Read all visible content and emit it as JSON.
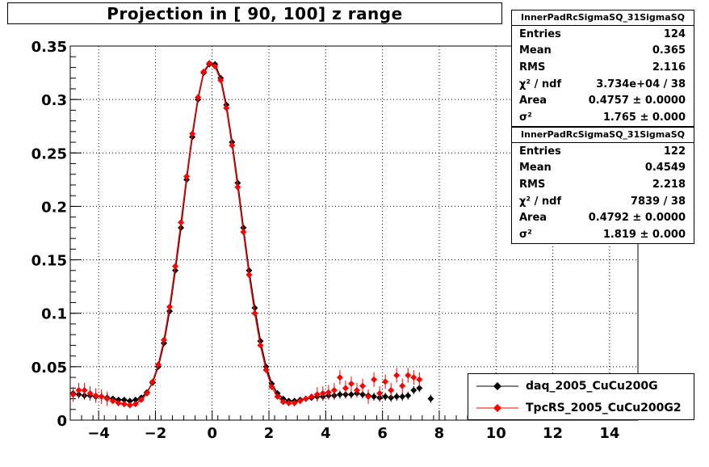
{
  "title": "Projection in [  90, 100] z range",
  "stats_boxes": [
    {
      "name": "InnerPadRcSigmaSQ_31SigmaSQ",
      "rows": [
        {
          "label": "Entries",
          "value": "124"
        },
        {
          "label": "Mean",
          "value": "0.365"
        },
        {
          "label": "RMS",
          "value": "2.116"
        },
        {
          "label": "χ² / ndf",
          "value": "3.734e+04 / 38"
        },
        {
          "label": "Area",
          "value": "0.4757 ± 0.0000"
        },
        {
          "label": "σ²",
          "value": "1.765 ± 0.000"
        }
      ]
    },
    {
      "name": "InnerPadRcSigmaSQ_31SigmaSQ",
      "rows": [
        {
          "label": "Entries",
          "value": "122"
        },
        {
          "label": "Mean",
          "value": "0.4549"
        },
        {
          "label": "RMS",
          "value": "2.218"
        },
        {
          "label": "χ² / ndf",
          "value": "7839 / 38"
        },
        {
          "label": "Area",
          "value": "0.4792 ± 0.0000"
        },
        {
          "label": "σ²",
          "value": "1.819 ± 0.000"
        }
      ]
    }
  ],
  "legend": [
    {
      "label": "daq_2005_CuCu200G",
      "color": "#000000"
    },
    {
      "label": "TpcRS_2005_CuCu200G2",
      "color": "#ff0000"
    }
  ],
  "chart_data": {
    "type": "scatter",
    "xlim": [
      -5,
      15
    ],
    "ylim": [
      0,
      0.35
    ],
    "xticks": [
      -4,
      -2,
      0,
      2,
      4,
      6,
      8,
      10,
      12,
      14
    ],
    "xtick_labels": [
      "−4",
      "−2",
      "0",
      "2",
      "4",
      "6",
      "8",
      "10",
      "12",
      "14"
    ],
    "yticks": [
      0,
      0.05,
      0.1,
      0.15,
      0.2,
      0.25,
      0.3,
      0.35
    ],
    "ytick_labels": [
      "0",
      "0.05",
      "0.1",
      "0.15",
      "0.2",
      "0.25",
      "0.3",
      "0.35"
    ],
    "grid": true,
    "legend_position": "bottom-right",
    "series": [
      {
        "name": "daq_2005_CuCu200G",
        "color": "#000000",
        "x": [
          -4.9,
          -4.7,
          -4.5,
          -4.3,
          -4.1,
          -3.9,
          -3.7,
          -3.5,
          -3.3,
          -3.1,
          -2.9,
          -2.7,
          -2.5,
          -2.3,
          -2.1,
          -1.9,
          -1.7,
          -1.5,
          -1.3,
          -1.1,
          -0.9,
          -0.7,
          -0.5,
          -0.3,
          -0.1,
          0.1,
          0.3,
          0.5,
          0.7,
          0.9,
          1.1,
          1.3,
          1.5,
          1.7,
          1.9,
          2.1,
          2.3,
          2.5,
          2.7,
          2.9,
          3.1,
          3.3,
          3.5,
          3.7,
          3.9,
          4.1,
          4.3,
          4.5,
          4.7,
          4.9,
          5.1,
          5.3,
          5.5,
          5.7,
          5.9,
          6.1,
          6.3,
          6.5,
          6.7,
          6.9,
          7.1,
          7.3,
          7.7
        ],
        "y": [
          0.025,
          0.024,
          0.023,
          0.023,
          0.022,
          0.022,
          0.021,
          0.02,
          0.019,
          0.019,
          0.018,
          0.019,
          0.021,
          0.026,
          0.035,
          0.05,
          0.072,
          0.102,
          0.14,
          0.18,
          0.225,
          0.265,
          0.3,
          0.325,
          0.333,
          0.333,
          0.32,
          0.295,
          0.26,
          0.222,
          0.18,
          0.14,
          0.105,
          0.074,
          0.05,
          0.034,
          0.025,
          0.02,
          0.018,
          0.018,
          0.019,
          0.02,
          0.021,
          0.022,
          0.022,
          0.023,
          0.023,
          0.024,
          0.024,
          0.024,
          0.025,
          0.024,
          0.023,
          0.022,
          0.021,
          0.022,
          0.021,
          0.022,
          0.022,
          0.023,
          0.028,
          0.03,
          0.02
        ]
      },
      {
        "name": "TpcRS_2005_CuCu200G2",
        "color": "#ff0000",
        "x": [
          -4.9,
          -4.7,
          -4.5,
          -4.3,
          -4.1,
          -3.9,
          -3.7,
          -3.5,
          -3.3,
          -3.1,
          -2.9,
          -2.7,
          -2.5,
          -2.3,
          -2.1,
          -1.9,
          -1.7,
          -1.5,
          -1.3,
          -1.1,
          -0.9,
          -0.7,
          -0.5,
          -0.3,
          -0.1,
          0.1,
          0.3,
          0.5,
          0.7,
          0.9,
          1.1,
          1.3,
          1.5,
          1.7,
          1.9,
          2.1,
          2.3,
          2.5,
          2.7,
          2.9,
          3.1,
          3.3,
          3.5,
          3.7,
          3.9,
          4.1,
          4.3,
          4.5,
          4.7,
          4.9,
          5.1,
          5.3,
          5.5,
          5.7,
          5.9,
          6.1,
          6.3,
          6.5,
          6.7,
          6.9,
          7.1,
          7.3
        ],
        "y": [
          0.024,
          0.028,
          0.028,
          0.025,
          0.023,
          0.022,
          0.02,
          0.018,
          0.016,
          0.015,
          0.014,
          0.015,
          0.019,
          0.025,
          0.036,
          0.052,
          0.075,
          0.106,
          0.144,
          0.185,
          0.228,
          0.268,
          0.302,
          0.326,
          0.334,
          0.331,
          0.318,
          0.292,
          0.257,
          0.218,
          0.176,
          0.136,
          0.1,
          0.07,
          0.047,
          0.031,
          0.022,
          0.017,
          0.016,
          0.016,
          0.018,
          0.02,
          0.022,
          0.024,
          0.025,
          0.026,
          0.028,
          0.04,
          0.03,
          0.034,
          0.028,
          0.032,
          0.022,
          0.038,
          0.025,
          0.036,
          0.028,
          0.042,
          0.032,
          0.042,
          0.04,
          0.038
        ]
      }
    ]
  }
}
